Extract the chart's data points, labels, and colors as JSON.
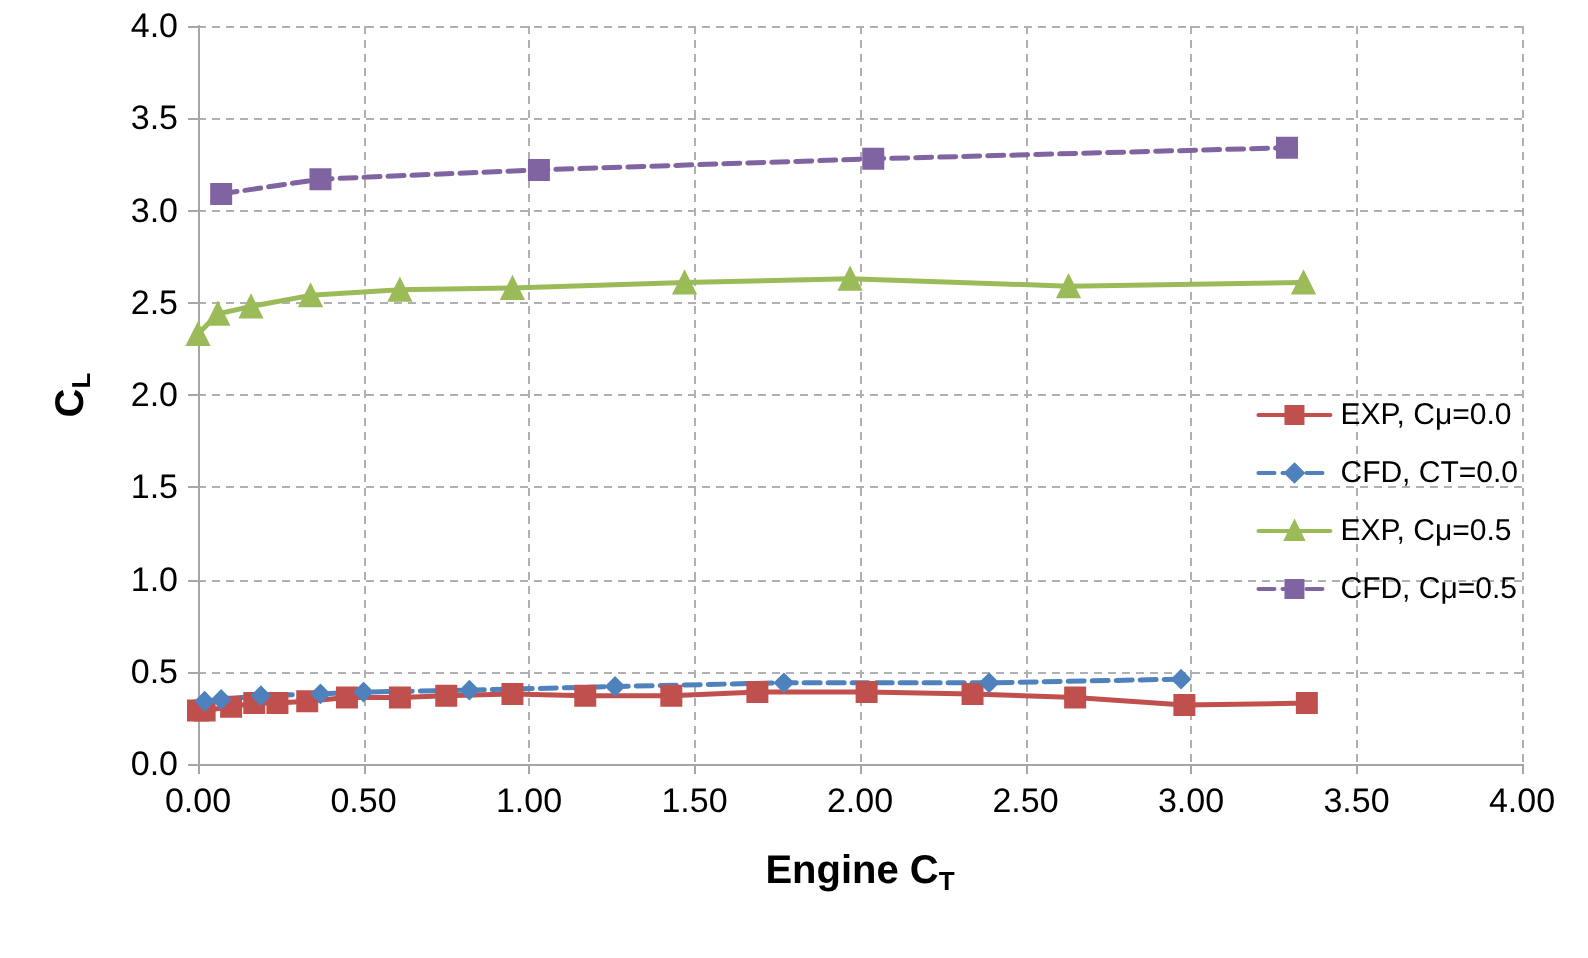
{
  "chart_data": {
    "type": "line",
    "xlabel": "Engine C$_{T}$",
    "ylabel": "C$_{L}$",
    "xlim": [
      0,
      4
    ],
    "xticks": [
      {
        "value": 0,
        "label": "0.00"
      },
      {
        "value": 0.5,
        "label": "0.50"
      },
      {
        "value": 1,
        "label": "1.00"
      },
      {
        "value": 1.5,
        "label": "1.50"
      },
      {
        "value": 2,
        "label": "2.00"
      },
      {
        "value": 2.5,
        "label": "2.50"
      },
      {
        "value": 3,
        "label": "3.00"
      },
      {
        "value": 3.5,
        "label": "3.50"
      },
      {
        "value": 4,
        "label": "4.00"
      }
    ],
    "ylim": [
      0,
      4
    ],
    "yticks": [
      {
        "value": 0,
        "label": "0.0"
      },
      {
        "value": 0.5,
        "label": "0.5"
      },
      {
        "value": 1,
        "label": "1.0"
      },
      {
        "value": 1.5,
        "label": "1.5"
      },
      {
        "value": 2,
        "label": "2.0"
      },
      {
        "value": 2.5,
        "label": "2.5"
      },
      {
        "value": 3,
        "label": "3.0"
      },
      {
        "value": 3.5,
        "label": "3.5"
      },
      {
        "value": 4,
        "label": "4.0"
      }
    ],
    "grid": true,
    "legend": "right",
    "series": [
      {
        "name": "EXP, Cμ=0.0",
        "color": "#c0504d",
        "marker": "square",
        "line_style": "solid",
        "x": [
          0,
          0.02,
          0.1,
          0.17,
          0.24,
          0.33,
          0.45,
          0.61,
          0.75,
          0.95,
          1.17,
          1.43,
          1.69,
          2.02,
          2.34,
          2.65,
          2.98,
          3.35
        ],
        "values": [
          0.29,
          0.29,
          0.31,
          0.33,
          0.33,
          0.34,
          0.36,
          0.36,
          0.37,
          0.38,
          0.37,
          0.37,
          0.39,
          0.39,
          0.38,
          0.36,
          0.32,
          0.33
        ]
      },
      {
        "name": "CFD, CT=0.0",
        "color": "#4f81bd",
        "marker": "diamond",
        "line_style": "dashed",
        "x": [
          0.02,
          0.07,
          0.19,
          0.37,
          0.5,
          0.82,
          1.26,
          1.77,
          2.39,
          2.97
        ],
        "values": [
          0.34,
          0.35,
          0.37,
          0.38,
          0.39,
          0.4,
          0.42,
          0.44,
          0.44,
          0.46
        ]
      },
      {
        "name": "EXP, Cμ=0.5",
        "color": "#9bbb59",
        "marker": "triangle",
        "line_style": "solid",
        "x": [
          0,
          0.06,
          0.16,
          0.34,
          0.61,
          0.95,
          1.47,
          1.97,
          2.63,
          3.34
        ],
        "values": [
          2.33,
          2.44,
          2.48,
          2.54,
          2.57,
          2.58,
          2.61,
          2.63,
          2.59,
          2.61
        ]
      },
      {
        "name": "CFD, Cμ=0.5",
        "color": "#8064a2",
        "marker": "square",
        "line_style": "dashed",
        "x": [
          0.07,
          0.37,
          1.03,
          2.04,
          3.29
        ],
        "values": [
          3.09,
          3.17,
          3.22,
          3.28,
          3.34
        ]
      }
    ]
  }
}
